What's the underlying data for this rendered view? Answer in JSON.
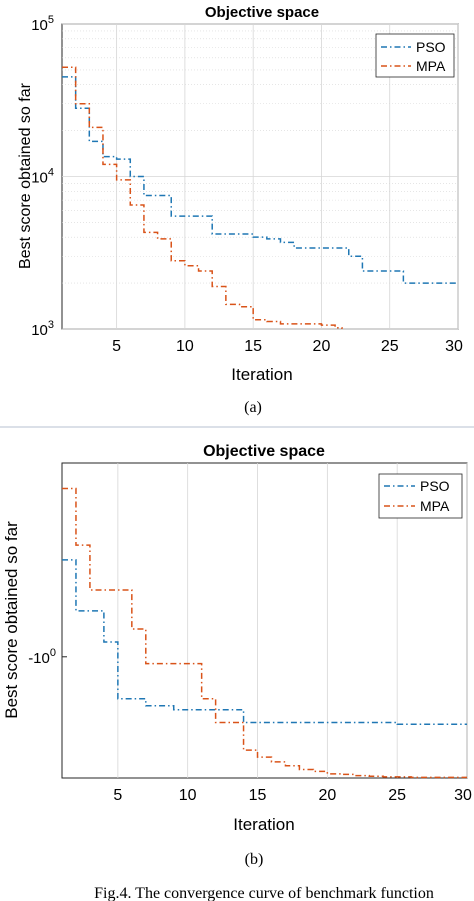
{
  "colors": {
    "pso": "#1f77b4",
    "mpa": "#d95319",
    "grid": "#d6d6d6",
    "axis": "#262626",
    "separator": "#cfd6e0"
  },
  "panel_a_label": "(a)",
  "panel_b_label": "(b)",
  "figure_caption": "Fig.4. The convergence curve of benchmark function",
  "chart_data": [
    {
      "type": "line",
      "title": "Objective space",
      "xlabel": "Iteration",
      "ylabel": "Best score obtained so far",
      "y_scale": "log",
      "xlim": [
        1,
        30
      ],
      "ylim": [
        1000,
        100000
      ],
      "x_ticks": [
        5,
        10,
        15,
        20,
        25,
        30
      ],
      "y_ticks": [
        {
          "value": 1000,
          "base": "10",
          "exp": "3"
        },
        {
          "value": 10000,
          "base": "10",
          "exp": "4"
        },
        {
          "value": 100000,
          "base": "10",
          "exp": "5"
        }
      ],
      "grid": true,
      "legend_position": "top-right",
      "series": [
        {
          "name": "PSO",
          "color_key": "pso",
          "style": "dashdot",
          "x": [
            1,
            2,
            3,
            4,
            5,
            6,
            7,
            8,
            9,
            10,
            11,
            12,
            13,
            14,
            15,
            16,
            17,
            18,
            19,
            20,
            21,
            22,
            23,
            24,
            25,
            26,
            27,
            28,
            29,
            30
          ],
          "y": [
            45000,
            28000,
            17000,
            13500,
            13000,
            10000,
            7500,
            7500,
            5500,
            5500,
            5500,
            4200,
            4200,
            4200,
            4000,
            3900,
            3700,
            3400,
            3400,
            3400,
            3400,
            3000,
            2400,
            2400,
            2400,
            2000,
            2000,
            2000,
            2000,
            2000
          ]
        },
        {
          "name": "MPA",
          "color_key": "mpa",
          "style": "dashdot",
          "x": [
            1,
            2,
            3,
            4,
            5,
            6,
            7,
            8,
            9,
            10,
            11,
            12,
            13,
            14,
            15,
            16,
            17,
            18,
            19,
            20,
            21,
            21.5
          ],
          "y": [
            52000,
            30000,
            21000,
            12000,
            9500,
            6500,
            4300,
            3900,
            2800,
            2600,
            2400,
            1900,
            1450,
            1400,
            1150,
            1120,
            1080,
            1080,
            1080,
            1060,
            1020,
            1000
          ]
        }
      ]
    },
    {
      "type": "line",
      "title": "Objective space",
      "xlabel": "Iteration",
      "ylabel": "Best score obtained so far",
      "y_scale": "log-negative",
      "xlim": [
        1,
        30
      ],
      "y_ticks": [
        {
          "value": -1,
          "base": "-10",
          "exp": "0"
        }
      ],
      "x_ticks": [
        5,
        10,
        15,
        20,
        25,
        30
      ],
      "grid": true,
      "legend_position": "top-right",
      "series": [
        {
          "name": "PSO",
          "color_key": "pso",
          "style": "dashdot",
          "x": [
            1,
            2,
            3,
            4,
            5,
            6,
            7,
            8,
            9,
            10,
            11,
            12,
            13,
            14,
            15,
            16,
            17,
            18,
            19,
            20,
            21,
            22,
            23,
            24,
            25,
            26,
            27,
            28,
            29,
            30
          ],
          "y": [
            -0.5,
            -0.72,
            -0.72,
            -0.9,
            -1.35,
            -1.35,
            -1.42,
            -1.42,
            -1.46,
            -1.46,
            -1.46,
            -1.46,
            -1.46,
            -1.6,
            -1.6,
            -1.6,
            -1.6,
            -1.6,
            -1.6,
            -1.6,
            -1.6,
            -1.6,
            -1.6,
            -1.6,
            -1.62,
            -1.62,
            -1.62,
            -1.62,
            -1.62,
            -1.62
          ]
        },
        {
          "name": "MPA",
          "color_key": "mpa",
          "style": "dashdot",
          "x": [
            1,
            2,
            3,
            4,
            5,
            6,
            7,
            8,
            9,
            10,
            11,
            12,
            13,
            14,
            15,
            16,
            17,
            18,
            19,
            20,
            21,
            22,
            23,
            24,
            25,
            26,
            27,
            28,
            29,
            30
          ],
          "y": [
            -0.3,
            -0.45,
            -0.62,
            -0.62,
            -0.62,
            -0.82,
            -1.05,
            -1.05,
            -1.05,
            -1.05,
            -1.35,
            -1.6,
            -1.6,
            -1.95,
            -2.05,
            -2.12,
            -2.18,
            -2.24,
            -2.27,
            -2.31,
            -2.32,
            -2.34,
            -2.35,
            -2.36,
            -2.36,
            -2.37,
            -2.37,
            -2.37,
            -2.37,
            -2.37
          ]
        }
      ]
    }
  ]
}
